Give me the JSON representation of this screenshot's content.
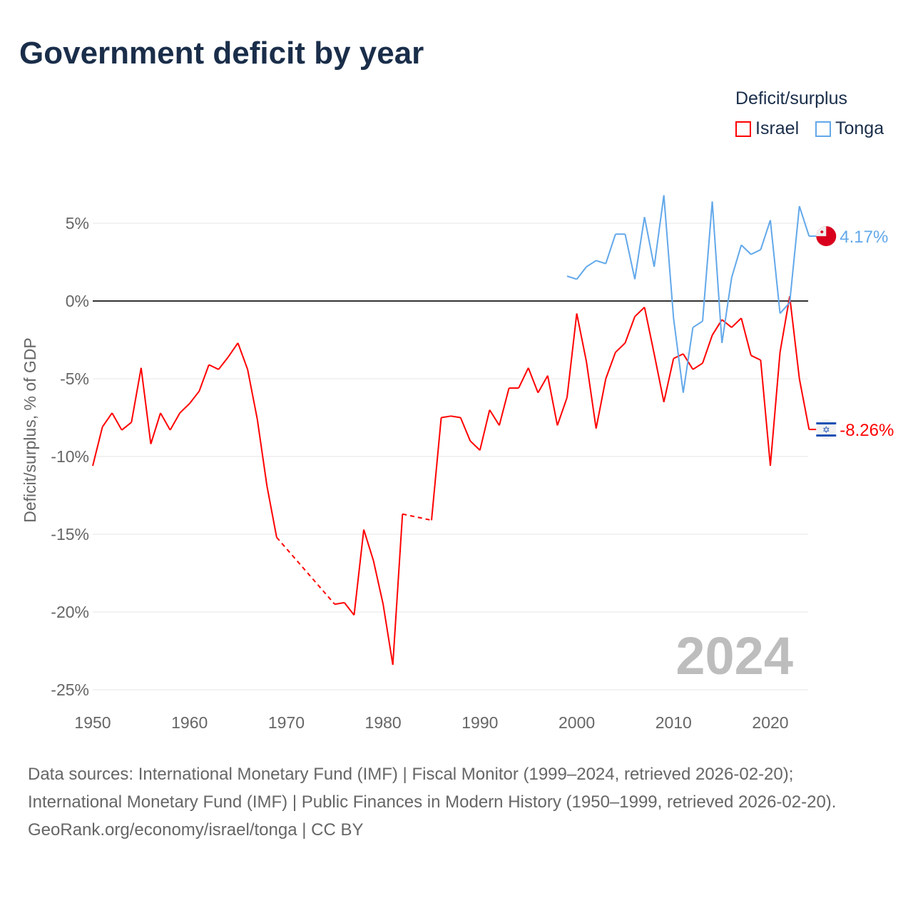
{
  "title": "Government deficit by year",
  "chart_data": {
    "type": "line",
    "title": "Government deficit by year",
    "ylabel": "Deficit/surplus, % of GDP",
    "xlabel": "",
    "legend_title": "Deficit/surplus",
    "legend_position": "top-right",
    "xlim": [
      1950,
      2024
    ],
    "ylim": [
      -25,
      7
    ],
    "x_ticks": [
      "1950",
      "1960",
      "1970",
      "1980",
      "1990",
      "2000",
      "2010",
      "2020"
    ],
    "y_ticks": [
      "5%",
      "0%",
      "-5%",
      "-10%",
      "-15%",
      "-20%",
      "-25%"
    ],
    "y_tick_values": [
      5,
      0,
      -5,
      -10,
      -15,
      -20,
      -25
    ],
    "grid": true,
    "year_watermark": "2024",
    "series": [
      {
        "name": "Israel",
        "color": "#ff0000",
        "end_label": "-8.26%",
        "flag": "israel-flag",
        "x": [
          1950,
          1951,
          1952,
          1953,
          1954,
          1955,
          1956,
          1957,
          1958,
          1959,
          1960,
          1961,
          1962,
          1963,
          1964,
          1965,
          1966,
          1967,
          1968,
          1969,
          1975,
          1976,
          1977,
          1978,
          1979,
          1980,
          1981,
          1982,
          1985,
          1986,
          1987,
          1988,
          1989,
          1990,
          1991,
          1992,
          1993,
          1994,
          1995,
          1996,
          1997,
          1998,
          1999,
          2000,
          2001,
          2002,
          2003,
          2004,
          2005,
          2006,
          2007,
          2008,
          2009,
          2010,
          2011,
          2012,
          2013,
          2014,
          2015,
          2016,
          2017,
          2018,
          2019,
          2020,
          2021,
          2022,
          2023,
          2024
        ],
        "values": [
          -10.6,
          -8.1,
          -7.2,
          -8.3,
          -7.8,
          -4.3,
          -9.2,
          -7.2,
          -8.3,
          -7.2,
          -6.6,
          -5.8,
          -4.1,
          -4.4,
          -3.6,
          -2.7,
          -4.4,
          -7.6,
          -11.9,
          -15.2,
          -19.5,
          -19.4,
          -20.2,
          -14.7,
          -16.7,
          -19.5,
          -23.4,
          -13.7,
          -14.1,
          -7.5,
          -7.4,
          -7.5,
          -9.0,
          -9.6,
          -7.0,
          -8.0,
          -5.6,
          -5.6,
          -4.3,
          -5.9,
          -4.8,
          -8.0,
          -6.2,
          -0.8,
          -3.9,
          -8.2,
          -5.0,
          -3.3,
          -2.7,
          -1.0,
          -0.4,
          -3.4,
          -6.5,
          -3.7,
          -3.4,
          -4.4,
          -4.0,
          -2.2,
          -1.2,
          -1.7,
          -1.1,
          -3.5,
          -3.8,
          -10.6,
          -3.3,
          0.3,
          -5.0,
          -8.26
        ]
      },
      {
        "name": "Tonga",
        "color": "#62a8ea",
        "end_label": "4.17%",
        "flag": "tonga-flag",
        "x": [
          1999,
          2000,
          2001,
          2002,
          2003,
          2004,
          2005,
          2006,
          2007,
          2008,
          2009,
          2010,
          2011,
          2012,
          2013,
          2014,
          2015,
          2016,
          2017,
          2018,
          2019,
          2020,
          2021,
          2022,
          2023,
          2024
        ],
        "values": [
          1.6,
          1.4,
          2.2,
          2.6,
          2.4,
          4.3,
          4.3,
          1.4,
          5.4,
          2.2,
          6.8,
          -1.1,
          -5.9,
          -1.7,
          -1.3,
          6.4,
          -2.7,
          1.5,
          3.6,
          3.0,
          3.3,
          5.2,
          -0.8,
          -0.1,
          6.1,
          4.17
        ]
      }
    ]
  },
  "footer": {
    "sources": "Data sources: International Monetary Fund (IMF) | Fiscal Monitor (1999–2024, retrieved 2026-02-20); International Monetary Fund (IMF) | Public Finances in Modern History (1950–1999, retrieved 2026-02-20).",
    "credit": "GeoRank.org/economy/israel/tonga | CC BY"
  }
}
